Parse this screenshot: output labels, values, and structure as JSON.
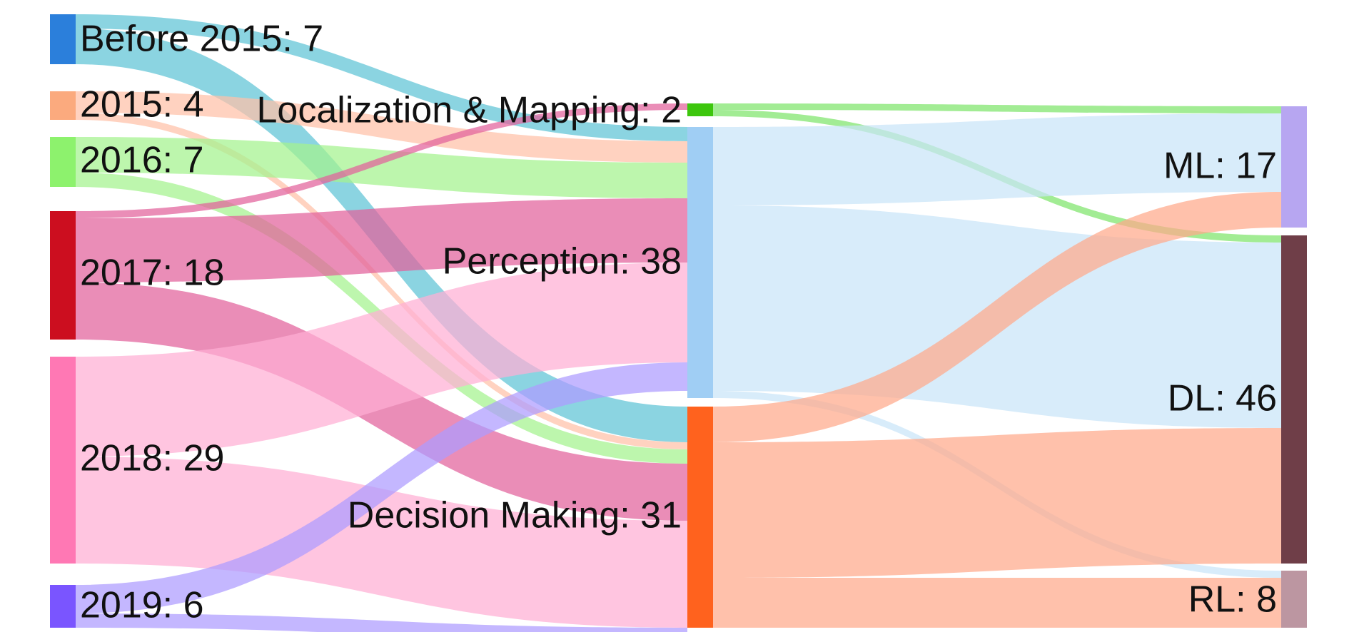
{
  "chart_data": {
    "type": "sankey",
    "title": "",
    "nodes": [
      {
        "id": "before2015",
        "name": "Before 2015",
        "value": 7,
        "color": "#2b7fdb"
      },
      {
        "id": "y2015",
        "name": "2015",
        "value": 4,
        "color": "#fbaa7e"
      },
      {
        "id": "y2016",
        "name": "2016",
        "value": 7,
        "color": "#8df26d"
      },
      {
        "id": "y2017",
        "name": "2017",
        "value": 18,
        "color": "#cc0e1f"
      },
      {
        "id": "y2018",
        "name": "2018",
        "value": 29,
        "color": "#ff78b4"
      },
      {
        "id": "y2019",
        "name": "2019",
        "value": 6,
        "color": "#7a55ff"
      },
      {
        "id": "loc",
        "name": "Localization & Mapping",
        "value": 2,
        "color": "#3dc60d"
      },
      {
        "id": "perc",
        "name": "Perception",
        "value": 38,
        "color": "#a0cef4"
      },
      {
        "id": "dec",
        "name": "Decision Making",
        "value": 31,
        "color": "#ff621e"
      },
      {
        "id": "ml",
        "name": "ML",
        "value": 17,
        "color": "#b7a6f1"
      },
      {
        "id": "dl",
        "name": "DL",
        "value": 46,
        "color": "#6f3e48"
      },
      {
        "id": "rl",
        "name": "RL",
        "value": 8,
        "color": "#bc96a1"
      }
    ],
    "links": [
      {
        "source": "before2015",
        "target": "perc",
        "value": 2,
        "color": "#5ec3d6"
      },
      {
        "source": "before2015",
        "target": "dec",
        "value": 5,
        "color": "#5ec3d6"
      },
      {
        "source": "y2015",
        "target": "perc",
        "value": 3,
        "color": "#ffc1a8"
      },
      {
        "source": "y2015",
        "target": "dec",
        "value": 1,
        "color": "#ffc1a8"
      },
      {
        "source": "y2016",
        "target": "perc",
        "value": 5,
        "color": "#a4f28d"
      },
      {
        "source": "y2016",
        "target": "dec",
        "value": 2,
        "color": "#a4f28d"
      },
      {
        "source": "y2017",
        "target": "loc",
        "value": 1,
        "color": "#e2619b"
      },
      {
        "source": "y2017",
        "target": "perc",
        "value": 9,
        "color": "#e2619b"
      },
      {
        "source": "y2017",
        "target": "dec",
        "value": 8,
        "color": "#e2619b"
      },
      {
        "source": "y2018",
        "target": "perc",
        "value": 14,
        "color": "#ffaed4"
      },
      {
        "source": "y2018",
        "target": "dec",
        "value": 15,
        "color": "#ffaed4"
      },
      {
        "source": "y2019",
        "target": "perc",
        "value": 4,
        "color": "#ad9bff"
      },
      {
        "source": "y2019",
        "target": "dec",
        "value": 2,
        "color": "#ad9bff"
      },
      {
        "source": "loc",
        "target": "ml",
        "value": 1,
        "color": "#7ee56b"
      },
      {
        "source": "loc",
        "target": "dl",
        "value": 1,
        "color": "#7ee56b"
      },
      {
        "source": "perc",
        "target": "ml",
        "value": 11,
        "color": "#c9e4f8"
      },
      {
        "source": "perc",
        "target": "dl",
        "value": 26,
        "color": "#c9e4f8"
      },
      {
        "source": "perc",
        "target": "rl",
        "value": 1,
        "color": "#c9e4f8"
      },
      {
        "source": "dec",
        "target": "ml",
        "value": 5,
        "color": "#ffa98a"
      },
      {
        "source": "dec",
        "target": "dl",
        "value": 19,
        "color": "#ffa98a"
      },
      {
        "source": "dec",
        "target": "rl",
        "value": 7,
        "color": "#ffa98a"
      }
    ]
  }
}
